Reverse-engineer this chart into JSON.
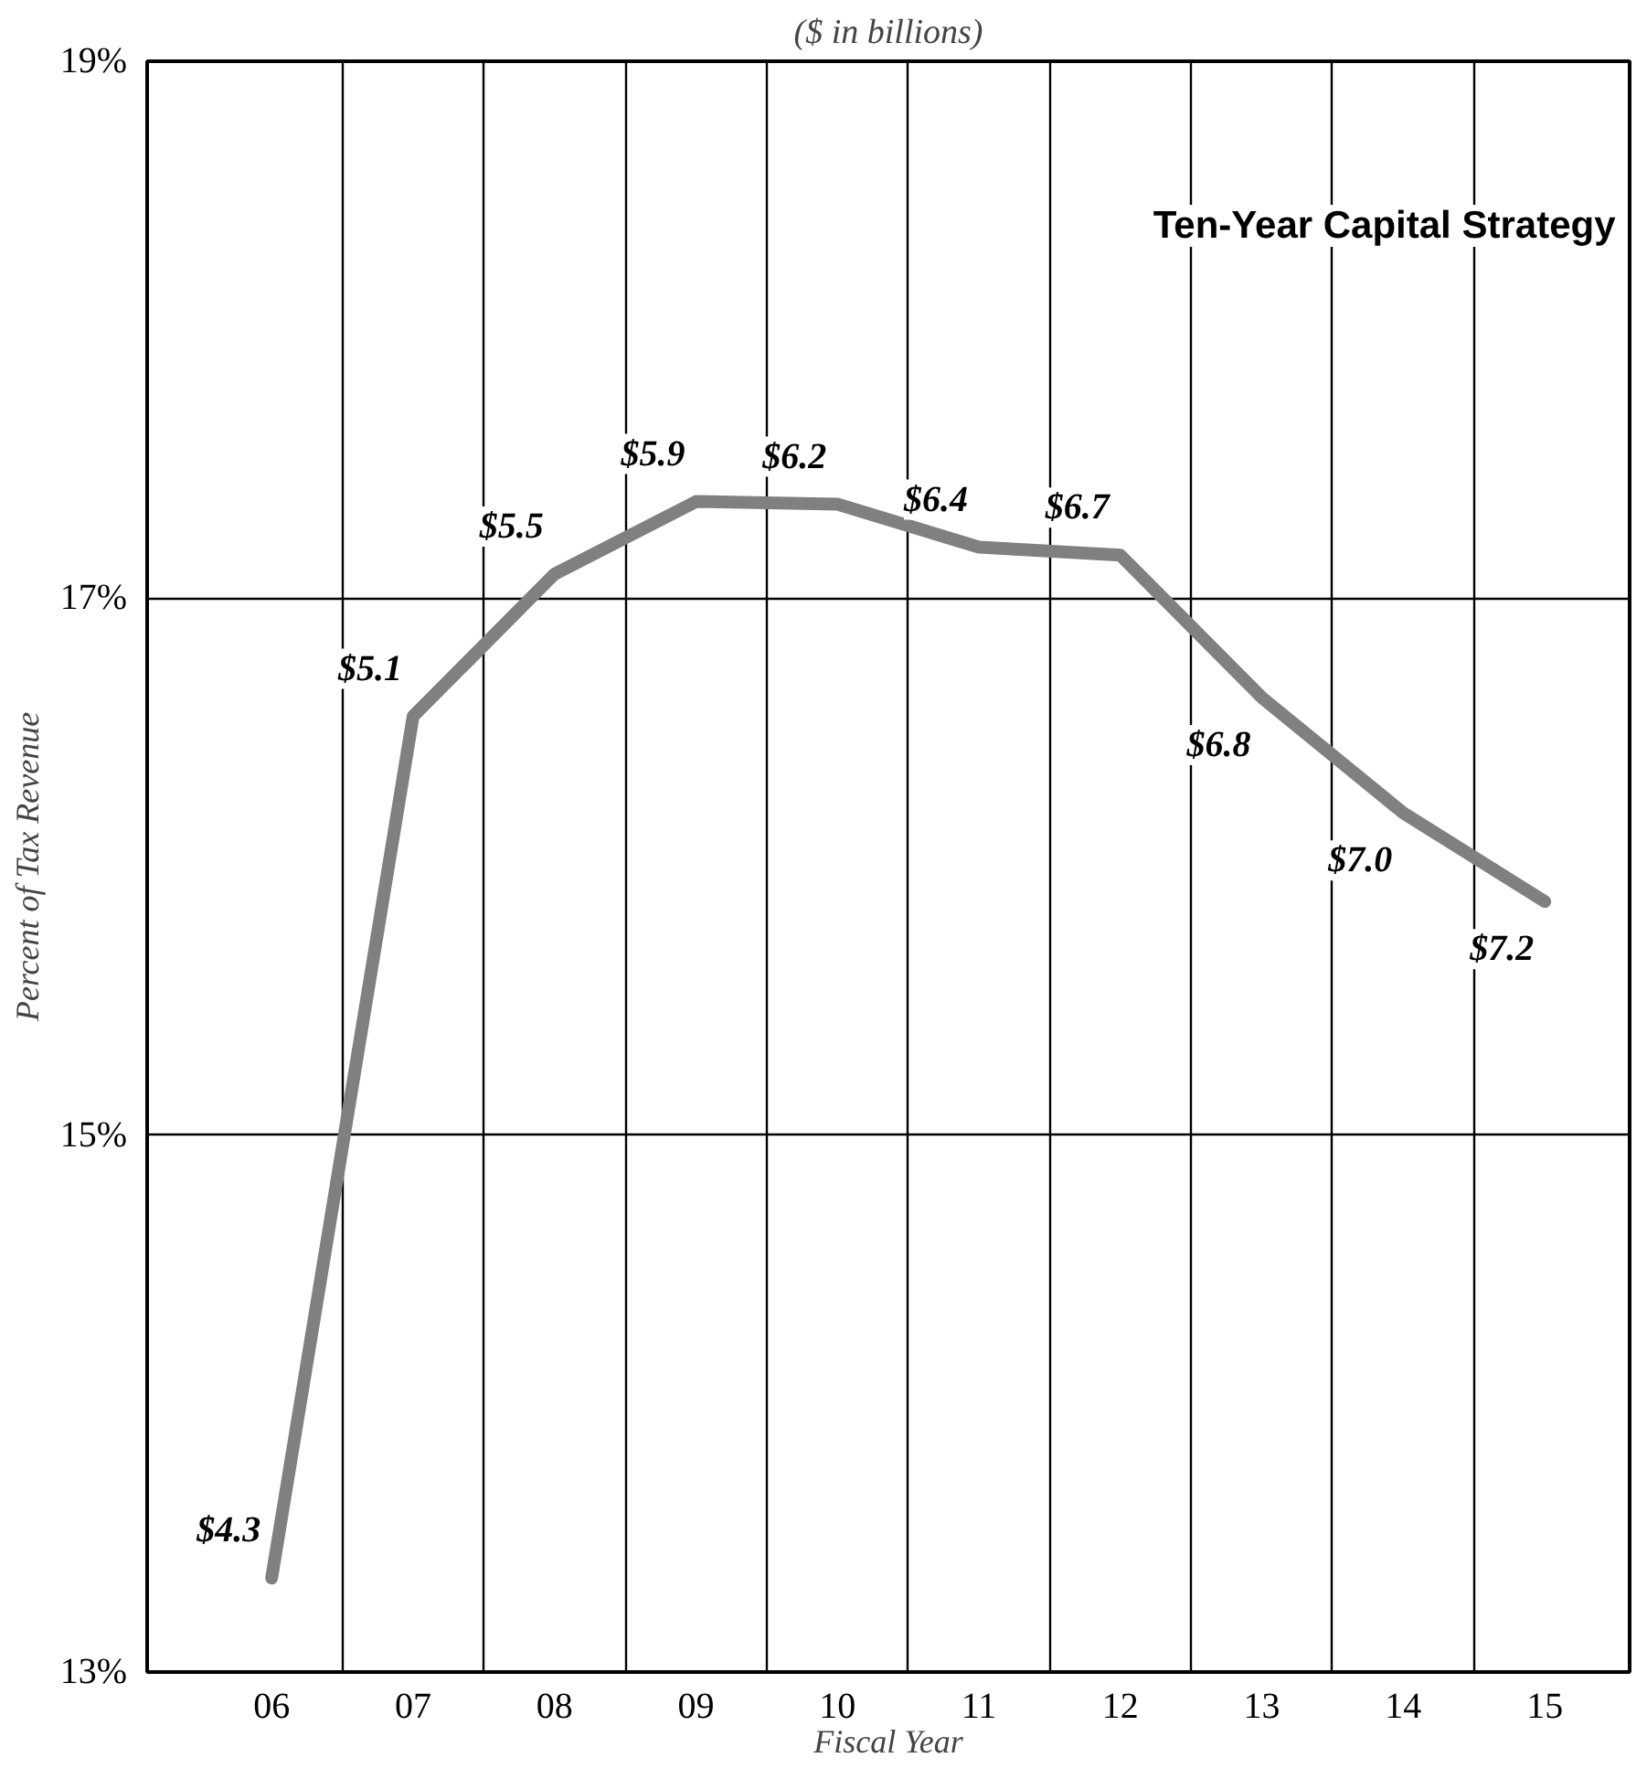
{
  "chart_data": {
    "type": "line",
    "title": "Ten-Year Capital Strategy",
    "subtitle": "($ in billions)",
    "xlabel": "Fiscal Year",
    "ylabel": "Percent of Tax Revenue",
    "categories": [
      "06",
      "07",
      "08",
      "09",
      "10",
      "11",
      "12",
      "13",
      "14",
      "15"
    ],
    "series": [
      {
        "color": "#808080",
        "values": [
          13.35,
          16.56,
          17.09,
          17.36,
          17.35,
          17.19,
          17.16,
          16.63,
          16.2,
          15.87
        ]
      }
    ],
    "annotations": [
      {
        "text": "$4.3",
        "x": "06",
        "y": 13.35
      },
      {
        "text": "$5.1",
        "x": "07",
        "y": 16.56
      },
      {
        "text": "$5.5",
        "x": "08",
        "y": 17.09
      },
      {
        "text": "$5.9",
        "x": "09",
        "y": 17.36
      },
      {
        "text": "$6.2",
        "x": "10",
        "y": 17.35
      },
      {
        "text": "$6.4",
        "x": "11",
        "y": 17.19
      },
      {
        "text": "$6.7",
        "x": "12",
        "y": 17.16
      },
      {
        "text": "$6.8",
        "x": "13",
        "y": 16.63
      },
      {
        "text": "$7.0",
        "x": "14",
        "y": 16.2
      },
      {
        "text": "$7.2",
        "x": "15",
        "y": 15.87
      }
    ],
    "ylim": [
      13,
      19
    ],
    "yticks": [
      {
        "value": 13,
        "label": "13%"
      },
      {
        "value": 15,
        "label": "15%"
      },
      {
        "value": 17,
        "label": "17%"
      },
      {
        "value": 19,
        "label": "19%"
      }
    ],
    "grid": true
  }
}
